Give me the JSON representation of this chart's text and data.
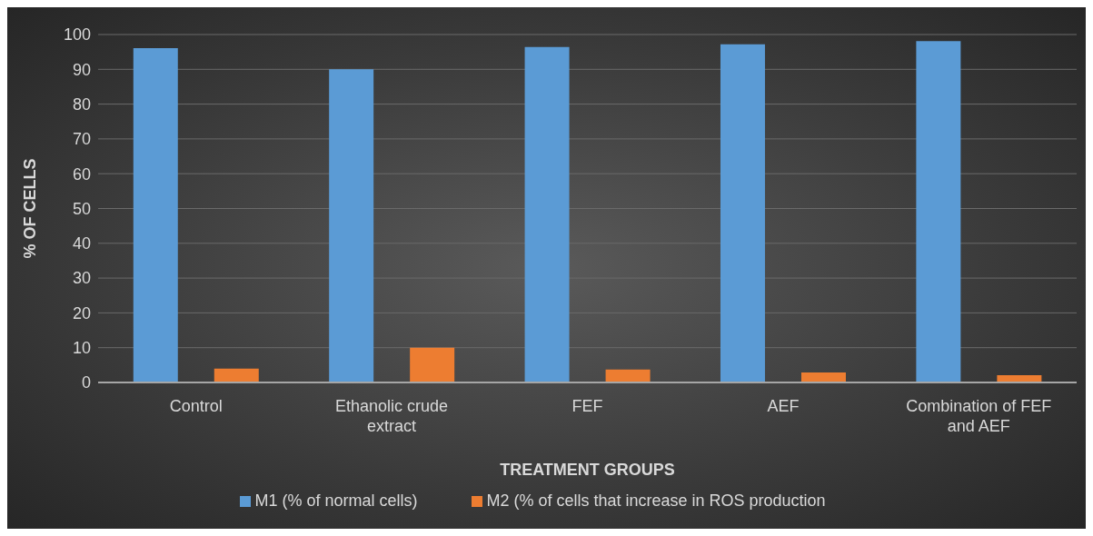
{
  "chart_data": {
    "type": "bar",
    "xlabel": "TREATMENT GROUPS",
    "ylabel": "% OF CELLS",
    "categories": [
      "Control",
      "Ethanolic crude extract",
      "FEF",
      "AEF",
      "Combination of FEF and AEF"
    ],
    "series": [
      {
        "name": "M1 (% of normal cells)",
        "color": "#5b9bd5",
        "values": [
          96.1,
          90.0,
          96.4,
          97.2,
          98.1
        ]
      },
      {
        "name": "M2 (% of cells that increase in ROS production",
        "color": "#ed7d31",
        "values": [
          4.0,
          10.0,
          3.7,
          2.9,
          2.1
        ]
      }
    ],
    "ylim": [
      0,
      100
    ],
    "yticks": [
      0,
      10,
      20,
      30,
      40,
      50,
      60,
      70,
      80,
      90,
      100
    ],
    "grid": "y",
    "legend": "bottom"
  }
}
